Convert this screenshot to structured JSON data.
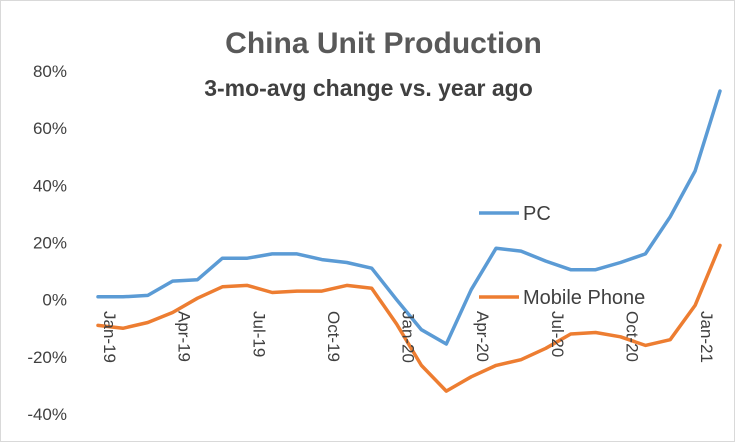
{
  "chart_data": {
    "type": "line",
    "title": "China Unit Production",
    "subtitle": "3-mo-avg change vs. year ago",
    "xlabel": "",
    "ylabel": "",
    "ylim": [
      -40,
      80
    ],
    "yticks": [
      -40,
      -20,
      0,
      20,
      40,
      60,
      80
    ],
    "ytick_labels": [
      "-40%",
      "-20%",
      "0%",
      "20%",
      "40%",
      "60%",
      "80%"
    ],
    "x": [
      "Jan-19",
      "Feb-19",
      "Mar-19",
      "Apr-19",
      "May-19",
      "Jun-19",
      "Jul-19",
      "Aug-19",
      "Sep-19",
      "Oct-19",
      "Nov-19",
      "Dec-19",
      "Jan-20",
      "Feb-20",
      "Mar-20",
      "Apr-20",
      "May-20",
      "Jun-20",
      "Jul-20",
      "Aug-20",
      "Sep-20",
      "Oct-20",
      "Nov-20",
      "Dec-20",
      "Jan-21",
      "Feb-21"
    ],
    "xtick_labels": [
      "Jan-19",
      "Apr-19",
      "Jul-19",
      "Oct-19",
      "Jan-20",
      "Apr-20",
      "Jul-20",
      "Oct-20",
      "Jan-21"
    ],
    "xtick_indices": [
      0,
      3,
      6,
      9,
      12,
      15,
      18,
      21,
      24
    ],
    "series": [
      {
        "name": "PC",
        "color": "#5b9bd5",
        "values": [
          1,
          1,
          1.5,
          6.5,
          7,
          14.5,
          14.5,
          16,
          16,
          14,
          13,
          11,
          0,
          -10.5,
          -15.5,
          3.5,
          18,
          17,
          13.5,
          10.5,
          10.5,
          13,
          16,
          29,
          45,
          73
        ]
      },
      {
        "name": "Mobile Phone",
        "color": "#ed7d31",
        "values": [
          -9,
          -10,
          -8,
          -4.5,
          0.5,
          4.5,
          5,
          2.5,
          3,
          3,
          5,
          4,
          -8.5,
          -23,
          -32,
          -27,
          -23,
          -21,
          -17,
          -12,
          -11.5,
          -13,
          -16,
          -14,
          -2,
          19
        ]
      }
    ],
    "grid": false,
    "legend": "inline"
  }
}
